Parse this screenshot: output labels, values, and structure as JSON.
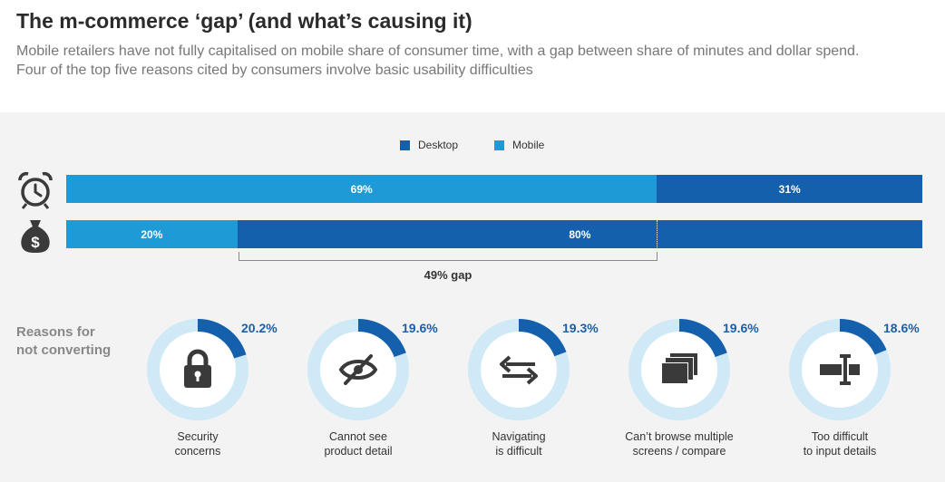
{
  "header": {
    "title": "The m-commerce ‘gap’ (and what’s causing it)",
    "subtitle_line1": "Mobile retailers have not fully capitalised on mobile share of consumer time, with a gap between share of minutes and dollar spend.",
    "subtitle_line2": "Four of the top five reasons cited by consumers involve basic usability difficulties"
  },
  "colors": {
    "desktop": "#1560ad",
    "mobile": "#1e9bd7",
    "ring_track": "#cfe9f6",
    "icon": "#3a3a3a",
    "panel_bg": "#f3f3f3"
  },
  "chart_data": [
    {
      "type": "bar",
      "stacked": true,
      "orientation": "horizontal",
      "legend": [
        "Desktop",
        "Mobile"
      ],
      "legend_position": "top-center",
      "rows": [
        {
          "icon": "alarm-clock-icon",
          "segments": [
            {
              "series": "Mobile",
              "value": 69,
              "label": "69%"
            },
            {
              "series": "Desktop",
              "value": 31,
              "label": "31%"
            }
          ]
        },
        {
          "icon": "money-bag-icon",
          "segments": [
            {
              "series": "Mobile",
              "value": 20,
              "label": "20%"
            },
            {
              "series": "Desktop",
              "value": 80,
              "label": "80%"
            }
          ]
        }
      ],
      "annotation": "49% gap",
      "xlim": [
        0,
        100
      ]
    },
    {
      "type": "pie",
      "heading_line1": "Reasons for",
      "heading_line2": "not converting",
      "items": [
        {
          "value": 20.2,
          "label": "20.2%",
          "caption_line1": "Security",
          "caption_line2": "concerns",
          "icon": "padlock-icon"
        },
        {
          "value": 19.6,
          "label": "19.6%",
          "caption_line1": "Cannot see",
          "caption_line2": "product detail",
          "icon": "eye-slash-icon"
        },
        {
          "value": 19.3,
          "label": "19.3%",
          "caption_line1": "Navigating",
          "caption_line2": "is difficult",
          "icon": "swap-arrows-icon"
        },
        {
          "value": 19.6,
          "label": "19.6%",
          "caption_line1": "Can’t browse multiple",
          "caption_line2": "screens / compare",
          "icon": "stacked-screens-icon"
        },
        {
          "value": 18.6,
          "label": "18.6%",
          "caption_line1": "Too difficult",
          "caption_line2": "to input details",
          "icon": "text-cursor-icon"
        }
      ]
    }
  ]
}
